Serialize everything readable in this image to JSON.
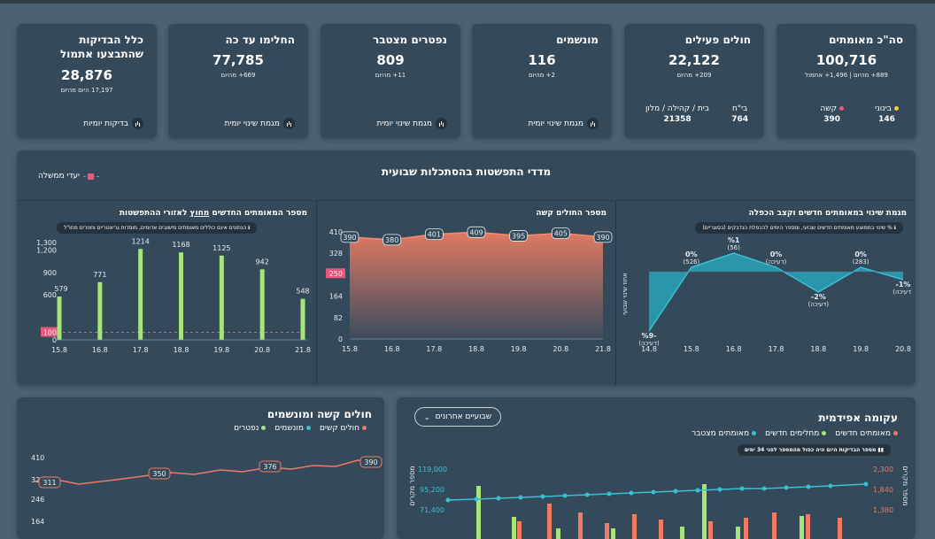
{
  "cards": [
    {
      "title": "סה\"כ מאומתים",
      "value": "100,716",
      "sub": "889+ מהיום | 1,496+ אתמול",
      "split": [
        {
          "label": "בינוני",
          "value": "146",
          "color": "#f2c84b"
        },
        {
          "label": "קשה",
          "value": "390",
          "color": "#e8577c"
        }
      ]
    },
    {
      "title": "חולים פעילים",
      "value": "22,122",
      "sub": "209+ מהיום",
      "split": [
        {
          "label": "בית / קהילה / מלון",
          "value": "21358"
        },
        {
          "label": "בי\"ח",
          "value": "764"
        }
      ]
    },
    {
      "title": "מונשמים",
      "value": "116",
      "sub": "2+ מהיום",
      "trend": "מגמת שינוי יומית"
    },
    {
      "title": "נפטרים מצטבר",
      "value": "809",
      "sub": "11+ מהיום",
      "trend": "מגמת שינוי יומית"
    },
    {
      "title": "החלימו עד כה",
      "value": "77,785",
      "sub": "669+ מהיום",
      "trend": "מגמת שינוי יומית"
    },
    {
      "title": "כלל הבדיקות שהתבצעו אתמול",
      "value": "28,876",
      "sub": "17,197 היום מהיום",
      "trend": "בדיקות יומיות"
    }
  ],
  "weekly": {
    "title": "מדדי התפשטות בהסתכלות שבועית",
    "legend": "יעדי ממשלה",
    "left": {
      "title": "מגמת שינוי במאומתים חדשים וקצב הכפלה",
      "note": "% שינוי בממוצע מאומתים חדשים שבועי, ומספר הימים להכפלת הנדבקים (בסוגריים)",
      "ylabel": "אחוז שינוי שבועי",
      "chart_data": {
        "type": "area",
        "x": [
          "14.8",
          "15.8",
          "16.8",
          "17.8",
          "18.8",
          "19.8",
          "20.8"
        ],
        "labels": [
          "%9-",
          "0%",
          "%1",
          "0%",
          "-2%",
          "0%",
          "-1%"
        ],
        "sublabels": [
          "(דעיכה)",
          "(526)",
          "(56)",
          "(דעיכה)",
          "(דעיכה)",
          "(283)",
          "(דעיכה)"
        ]
      }
    },
    "mid": {
      "title": "מספר החולים קשה",
      "chart_data": {
        "type": "area",
        "x": [
          "15.8",
          "16.8",
          "17.8",
          "18.8",
          "19.8",
          "20.8",
          "21.8"
        ],
        "values": [
          390,
          380,
          401,
          409,
          395,
          405,
          390
        ],
        "yticks": [
          "0",
          "82",
          "164",
          "250",
          "328",
          "410"
        ],
        "target": "250"
      }
    },
    "right": {
      "title": "מספר המאומתים החדשים",
      "title_u": "מחוץ",
      "title_rest": "לאזורי ההתפשטות",
      "note": "הנתונים אינם כוללים מאומתים מישובים אדומים, מוסדות גריאטריים וחוזרים מחו\"ל",
      "chart_data": {
        "type": "bar",
        "x": [
          "15.8",
          "16.8",
          "17.8",
          "18.8",
          "19.8",
          "20.8",
          "21.8"
        ],
        "values": [
          579,
          771,
          1214,
          1168,
          1125,
          942,
          548
        ],
        "yticks": [
          "0",
          "100",
          "600",
          "900",
          "1,200",
          "1,300"
        ],
        "target": "100"
      }
    }
  },
  "bottomLeft": {
    "title": "עקומה אפידמית",
    "dropdown": "שבועיים אחרונים",
    "legend": [
      "מאומתים חדשים",
      "מחלימים חדשים",
      "מאומתים מצטבר"
    ],
    "note": "מספר הבדיקות היום היה כפול מהמספר לפני 34 ימים",
    "yleft_label": "מספר מקרים",
    "yleft": [
      "119,000",
      "95,200",
      "71,400"
    ],
    "yright": [
      "2,300",
      "1,840",
      "1,380"
    ]
  },
  "bottomRight": {
    "title": "חולים קשה ומונשמים",
    "legend": [
      "חולים קשים",
      "מונשמים",
      "נפטרים"
    ],
    "yticks": [
      "410",
      "328",
      "246",
      "164"
    ],
    "labels": [
      "311",
      "350",
      "376",
      "390"
    ]
  }
}
